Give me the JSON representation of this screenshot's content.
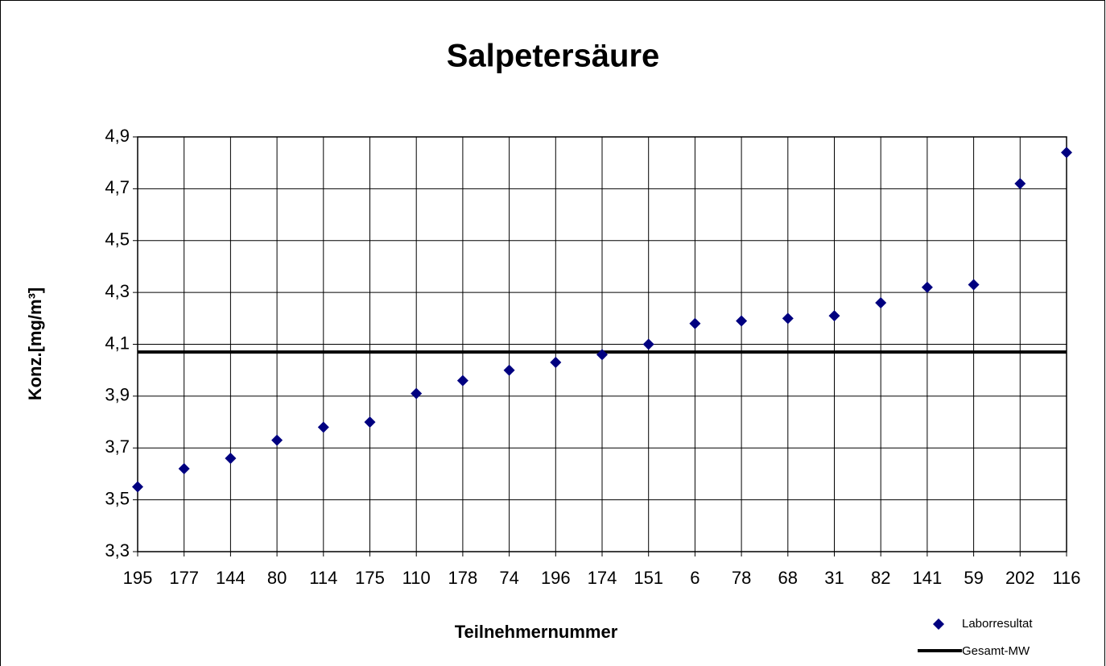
{
  "chart_data": {
    "type": "scatter",
    "title": "Salpetersäure",
    "x_label": "Teilnehmernummer",
    "y_label": "Konz.[mg/m³]",
    "categories": [
      "195",
      "177",
      "144",
      "80",
      "114",
      "175",
      "110",
      "178",
      "74",
      "196",
      "174",
      "151",
      "6",
      "78",
      "68",
      "31",
      "82",
      "141",
      "59",
      "202",
      "116"
    ],
    "series": [
      {
        "name": "Laborresultat",
        "color": "#000080",
        "values": [
          3.55,
          3.62,
          3.66,
          3.73,
          3.78,
          3.8,
          3.91,
          3.96,
          4.0,
          4.03,
          4.06,
          4.1,
          4.18,
          4.19,
          4.2,
          4.21,
          4.26,
          4.32,
          4.33,
          4.72,
          4.84
        ]
      },
      {
        "name": "Gesamt-MW",
        "color": "#000000",
        "value": 4.07
      }
    ],
    "ylim": [
      3.3,
      4.9
    ],
    "yticks": [
      {
        "value": 3.3,
        "label": "3,3"
      },
      {
        "value": 3.5,
        "label": "3,5"
      },
      {
        "value": 3.7,
        "label": "3,7"
      },
      {
        "value": 3.9,
        "label": "3,9"
      },
      {
        "value": 4.1,
        "label": "4,1"
      },
      {
        "value": 4.3,
        "label": "4,3"
      },
      {
        "value": 4.5,
        "label": "4,5"
      },
      {
        "value": 4.7,
        "label": "4,7"
      },
      {
        "value": 4.9,
        "label": "4,9"
      }
    ],
    "grid": true,
    "legend": "bottom-right"
  }
}
